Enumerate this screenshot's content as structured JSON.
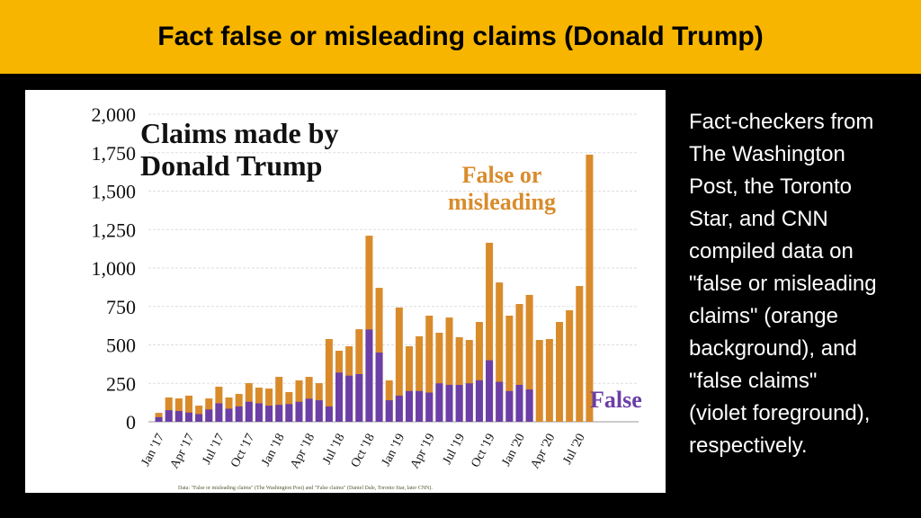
{
  "header": {
    "title": "Fact false or misleading claims (Donald Trump)"
  },
  "side_text": [
    "Fact-checkers from",
    "The Washington",
    "Post, the Toronto",
    "Star, and CNN",
    "compiled data on",
    "\"false or misleading",
    "claims\" (orange",
    "background), and",
    "\"false claims\"",
    "(violet foreground),",
    "respectively."
  ],
  "chart_data": {
    "type": "bar",
    "title": "Claims made by Donald Trump",
    "source": "Data: \"False or misleading claims\" (The Washington Post) and \"False claims\" (Daniel Dale, Toronto Star, later CNN).",
    "categories": [
      "Jan '17",
      null,
      null,
      "Apr '17",
      null,
      null,
      "Jul '17",
      null,
      null,
      "Oct '17",
      null,
      null,
      "Jan '18",
      null,
      null,
      "Apr '18",
      null,
      null,
      "Jul '18",
      null,
      null,
      "Oct '18",
      null,
      null,
      "Jan '19",
      null,
      null,
      "Apr '19",
      null,
      null,
      "Jul '19",
      null,
      null,
      "Oct '19",
      null,
      null,
      "Jan '20",
      null,
      null,
      "Apr '20",
      null,
      null,
      "Jul '20",
      null
    ],
    "series": [
      {
        "name": "False or misleading",
        "color": "#d98b2b",
        "values": [
          58,
          158,
          152,
          170,
          105,
          152,
          228,
          158,
          181,
          251,
          222,
          216,
          292,
          193,
          269,
          292,
          251,
          538,
          462,
          491,
          602,
          1210,
          871,
          269,
          743,
          491,
          556,
          690,
          579,
          678,
          550,
          532,
          649,
          1164,
          906,
          690,
          766,
          825,
          532,
          538,
          649,
          725,
          883,
          1737
        ]
      },
      {
        "name": "False",
        "color": "#6b3fa6",
        "values": [
          30,
          75,
          70,
          60,
          50,
          80,
          120,
          85,
          100,
          130,
          120,
          105,
          110,
          115,
          130,
          150,
          140,
          100,
          320,
          300,
          310,
          600,
          450,
          140,
          170,
          200,
          200,
          190,
          250,
          240,
          240,
          250,
          270,
          400,
          260,
          200,
          240,
          210,
          null,
          null,
          null,
          null,
          null,
          null
        ]
      }
    ],
    "ylim": [
      0,
      2000
    ],
    "yticks": [
      0,
      250,
      500,
      750,
      {
        "value": 1000,
        "label": "1,000"
      },
      {
        "value": 1250,
        "label": "1,250"
      },
      {
        "value": 1500,
        "label": "1,500"
      },
      {
        "value": 1750,
        "label": "1,750"
      },
      {
        "value": 2000,
        "label": "2,000"
      }
    ],
    "grid": true
  }
}
